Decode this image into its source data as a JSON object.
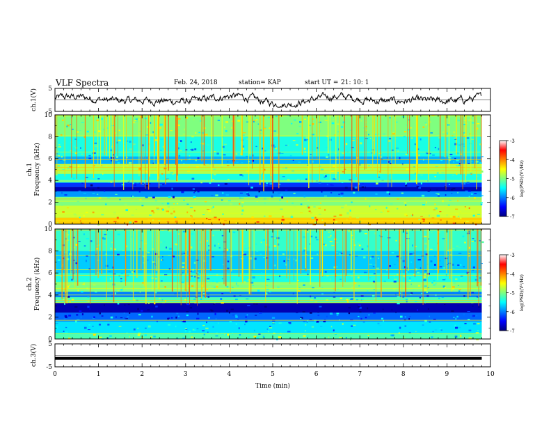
{
  "header": {
    "title": "VLF Spectra",
    "date": "Feb. 24, 2018",
    "station": "station= KAP",
    "start_label": "start  UT  =",
    "start_time": "21: 10: 1"
  },
  "chart_data": [
    {
      "type": "line",
      "panel": "ch1-waveform",
      "ylabel": "ch.1(V)",
      "ylim": [
        -5,
        5
      ],
      "yticks": [
        "5",
        "-5"
      ],
      "xlim": [
        0,
        10
      ],
      "note_values": "noisy waveform roughly between -3 and +3 V, from 0 to ~9.8 min",
      "color": "#000000"
    },
    {
      "type": "heatmap",
      "panel": "ch1-spectrogram",
      "ylabel_line1": "ch.1",
      "ylabel_line2": "Frequency (kHz)",
      "ylim": [
        0,
        10
      ],
      "yticks": [
        "0",
        "2",
        "4",
        "6",
        "8",
        "10"
      ],
      "xlim": [
        0,
        10
      ],
      "data_end_min": 9.8,
      "colorbar": {
        "label": "log(PSD)(V²/Hz)",
        "range": [
          -7,
          -3
        ],
        "ticks": [
          "-3",
          "-4",
          "-5",
          "-6",
          "-7"
        ],
        "colormap": [
          "#00007f",
          "#0000ff",
          "#007fff",
          "#00ffff",
          "#7fff7f",
          "#ffff00",
          "#ff7f00",
          "#ff0000",
          "#ffffff"
        ]
      },
      "bands": [
        {
          "f": [
            0,
            0.6
          ],
          "v": -4.3
        },
        {
          "f": [
            0.6,
            1.7
          ],
          "v": -4.7
        },
        {
          "f": [
            1.7,
            2.5
          ],
          "v": -5.0
        },
        {
          "f": [
            2.5,
            3.0
          ],
          "v": -5.9
        },
        {
          "f": [
            3.0,
            3.4
          ],
          "v": -6.8
        },
        {
          "f": [
            3.4,
            3.8
          ],
          "v": -6.3
        },
        {
          "f": [
            3.8,
            4.6
          ],
          "v": -5.4
        },
        {
          "f": [
            4.6,
            5.5
          ],
          "v": -4.8
        },
        {
          "f": [
            5.5,
            6.2
          ],
          "v": -5.8
        },
        {
          "f": [
            6.2,
            8.0
          ],
          "v": -5.4
        },
        {
          "f": [
            8.0,
            10.0
          ],
          "v": -5.0
        }
      ],
      "lines_khz": [
        0.3,
        1.0,
        2.1,
        2.3,
        3.9,
        4.0,
        4.9,
        5.2,
        5.45,
        5.9,
        6.6,
        8.1,
        9.9
      ]
    },
    {
      "type": "heatmap",
      "panel": "ch2-spectrogram",
      "ylabel_line1": "ch.2",
      "ylabel_line2": "Frequency (kHz)",
      "ylim": [
        0,
        10
      ],
      "yticks": [
        "0",
        "2",
        "4",
        "6",
        "8",
        "10"
      ],
      "xlim": [
        0,
        10
      ],
      "data_end_min": 9.8,
      "colorbar": {
        "label": "log(PSD)(V²/Hz)",
        "range": [
          -7,
          -3
        ],
        "ticks": [
          "-3",
          "-4",
          "-5",
          "-6",
          "-7"
        ],
        "colormap": [
          "#00007f",
          "#0000ff",
          "#007fff",
          "#00ffff",
          "#7fff7f",
          "#ffff00",
          "#ff7f00",
          "#ff0000",
          "#ffffff"
        ]
      },
      "bands": [
        {
          "f": [
            0,
            0.5
          ],
          "v": -5.2
        },
        {
          "f": [
            0.5,
            1.6
          ],
          "v": -5.6
        },
        {
          "f": [
            1.6,
            2.4
          ],
          "v": -6.1
        },
        {
          "f": [
            2.4,
            3.3
          ],
          "v": -6.8
        },
        {
          "f": [
            3.3,
            3.8
          ],
          "v": -5.2
        },
        {
          "f": [
            3.8,
            4.3
          ],
          "v": -6.0
        },
        {
          "f": [
            4.3,
            5.2
          ],
          "v": -5.0
        },
        {
          "f": [
            5.2,
            6.0
          ],
          "v": -5.4
        },
        {
          "f": [
            6.0,
            8.0
          ],
          "v": -5.7
        },
        {
          "f": [
            8.0,
            10.0
          ],
          "v": -5.3
        }
      ],
      "lines_khz": [
        0.5,
        1.7,
        3.3,
        3.5,
        4.0,
        4.6,
        5.0,
        5.8,
        6.3,
        7.6,
        9.9
      ]
    },
    {
      "type": "line",
      "panel": "ch3-waveform",
      "ylabel": "ch.3(V)",
      "ylim": [
        -5,
        5
      ],
      "yticks": [
        "5",
        "-5"
      ],
      "xlim": [
        0,
        10
      ],
      "xlabel": "Time  (min)",
      "xticks": [
        "0",
        "1",
        "2",
        "3",
        "4",
        "5",
        "6",
        "7",
        "8",
        "9",
        "10"
      ],
      "flat_value": -1.3,
      "color": "#000000"
    }
  ]
}
